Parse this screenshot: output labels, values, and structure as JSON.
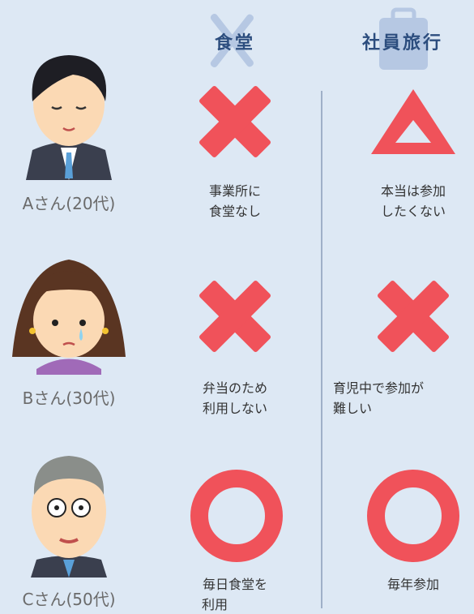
{
  "header": {
    "columns": [
      "食堂",
      "社員旅行"
    ]
  },
  "rows": [
    {
      "person": "Aさん(20代)",
      "cafeteria": [
        "事業所に",
        "食堂なし"
      ],
      "travel": [
        "本当は参加",
        "したくない"
      ]
    },
    {
      "person": "Bさん(30代)",
      "cafeteria": [
        "弁当のため",
        "利用しない"
      ],
      "travel": [
        "育児中で参加が",
        "難しい"
      ]
    },
    {
      "person": "Cさん(50代)",
      "cafeteria": [
        "毎日食堂を",
        "利用"
      ],
      "travel": [
        "毎年参加"
      ]
    }
  ]
}
